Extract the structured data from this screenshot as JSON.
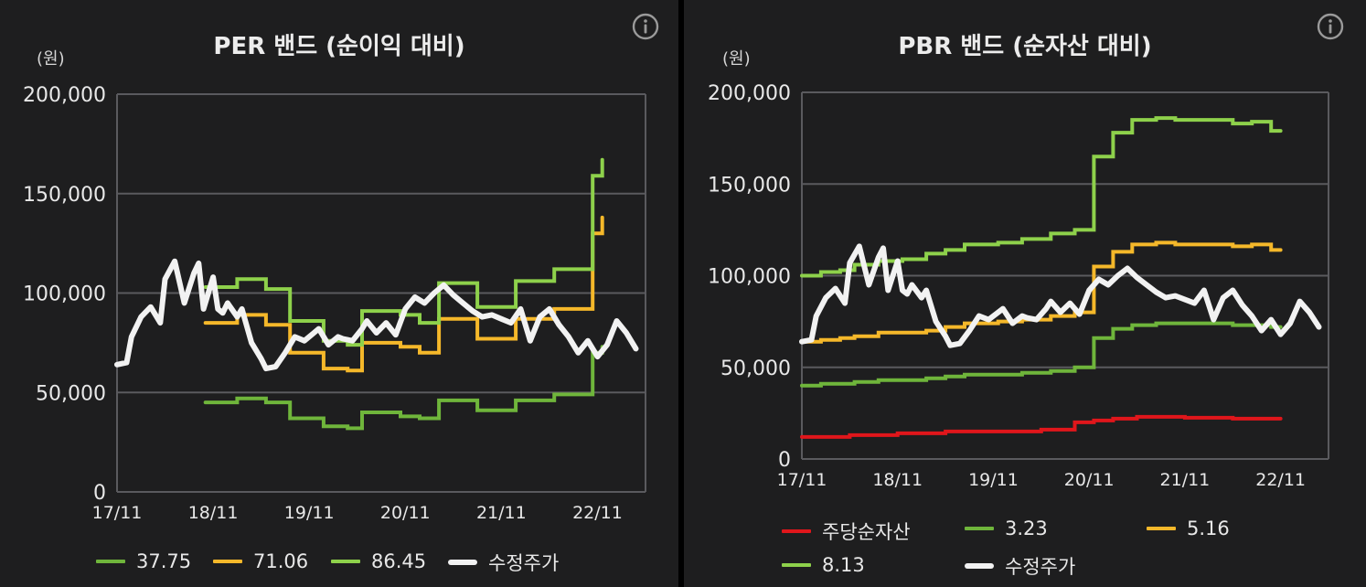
{
  "colors": {
    "background": "#1e1e1f",
    "grid": "#5a5a5e",
    "text": "#e8e8e8",
    "series_green_light": "#8ed14b",
    "series_green": "#6fb53b",
    "series_orange": "#f5b82a",
    "series_red": "#e0161b",
    "series_price": "#f2f2f2"
  },
  "icons": {
    "info": "info-circle-icon"
  },
  "chart_data": [
    {
      "type": "line",
      "title": "PER 밴드 (순이익 대비)",
      "unit": "(원)",
      "ylim": [
        0,
        200000
      ],
      "yticks": [
        "0",
        "50,000",
        "100,000",
        "150,000",
        "200,000"
      ],
      "yticks_values": [
        0,
        50000,
        100000,
        150000,
        200000
      ],
      "xlim": [
        0,
        5.5
      ],
      "xticks": [
        "17/11",
        "18/11",
        "19/11",
        "20/11",
        "21/11",
        "22/11"
      ],
      "xticks_values": [
        0,
        1,
        2,
        3,
        4,
        5
      ],
      "grid": true,
      "legend_position": "bottom",
      "series": [
        {
          "name": "37.75",
          "color": "#6fb53b",
          "style": "step",
          "width": 4,
          "x": [
            0.92,
            1.13,
            1.25,
            1.45,
            1.55,
            1.7,
            1.8,
            1.95,
            2.15,
            2.4,
            2.55,
            2.75,
            2.95,
            3.15,
            3.35,
            3.55,
            3.75,
            3.95,
            4.15,
            4.35,
            4.55,
            4.75,
            4.95,
            5.05
          ],
          "y": [
            45000,
            45000,
            47000,
            47000,
            45000,
            45000,
            37000,
            37000,
            33000,
            32000,
            40000,
            40000,
            38000,
            37000,
            46000,
            46000,
            41000,
            41000,
            46000,
            46000,
            49000,
            49000,
            70000,
            73000
          ]
        },
        {
          "name": "71.06",
          "color": "#f5b82a",
          "style": "step",
          "width": 4,
          "x": [
            0.92,
            1.13,
            1.25,
            1.45,
            1.55,
            1.7,
            1.8,
            1.95,
            2.15,
            2.4,
            2.55,
            2.75,
            2.95,
            3.15,
            3.35,
            3.55,
            3.75,
            3.95,
            4.15,
            4.35,
            4.55,
            4.75,
            4.95,
            5.05
          ],
          "y": [
            85000,
            85000,
            89000,
            89000,
            84000,
            84000,
            70000,
            70000,
            62000,
            61000,
            75000,
            75000,
            73000,
            70000,
            87000,
            87000,
            77000,
            77000,
            87000,
            87000,
            92000,
            92000,
            130000,
            138000
          ]
        },
        {
          "name": "86.45",
          "color": "#8ed14b",
          "style": "step",
          "width": 4,
          "x": [
            0.92,
            1.13,
            1.25,
            1.45,
            1.55,
            1.7,
            1.8,
            1.95,
            2.15,
            2.4,
            2.55,
            2.75,
            2.95,
            3.15,
            3.35,
            3.55,
            3.75,
            3.95,
            4.15,
            4.35,
            4.55,
            4.75,
            4.95,
            5.05
          ],
          "y": [
            103000,
            103000,
            107000,
            107000,
            102000,
            102000,
            86000,
            86000,
            76000,
            74000,
            91000,
            91000,
            89000,
            85000,
            105000,
            105000,
            93000,
            93000,
            106000,
            106000,
            112000,
            112000,
            159000,
            167000
          ]
        },
        {
          "name": "수정주가",
          "color": "#f2f2f2",
          "style": "line",
          "width": 6,
          "x": [
            0,
            0.1,
            0.15,
            0.25,
            0.35,
            0.45,
            0.5,
            0.6,
            0.7,
            0.8,
            0.85,
            0.9,
            1.0,
            1.05,
            1.1,
            1.15,
            1.25,
            1.3,
            1.4,
            1.5,
            1.55,
            1.65,
            1.75,
            1.85,
            1.95,
            2.05,
            2.1,
            2.2,
            2.3,
            2.35,
            2.45,
            2.55,
            2.6,
            2.7,
            2.8,
            2.9,
            3.0,
            3.1,
            3.2,
            3.3,
            3.4,
            3.5,
            3.6,
            3.7,
            3.8,
            3.9,
            4.0,
            4.1,
            4.2,
            4.3,
            4.4,
            4.5,
            4.6,
            4.7,
            4.8,
            4.9,
            5.0,
            5.1,
            5.2,
            5.3,
            5.4
          ],
          "y": [
            64000,
            65000,
            78000,
            88000,
            93000,
            85000,
            107000,
            116000,
            95000,
            110000,
            115000,
            92000,
            108000,
            92000,
            90000,
            95000,
            88000,
            92000,
            75000,
            67000,
            62000,
            63000,
            70000,
            78000,
            76000,
            80000,
            82000,
            74000,
            78000,
            77000,
            76000,
            82000,
            86000,
            80000,
            85000,
            79000,
            92000,
            98000,
            95000,
            100000,
            104000,
            99000,
            95000,
            91000,
            88000,
            89000,
            87000,
            85000,
            92000,
            76000,
            88000,
            92000,
            84000,
            78000,
            70000,
            76000,
            68000,
            74000,
            86000,
            80000,
            72000
          ]
        }
      ]
    },
    {
      "type": "line",
      "title": "PBR 밴드 (순자산 대비)",
      "unit": "(원)",
      "ylim": [
        0,
        200000
      ],
      "yticks": [
        "0",
        "50,000",
        "100,000",
        "150,000",
        "200,000"
      ],
      "yticks_values": [
        0,
        50000,
        100000,
        150000,
        200000
      ],
      "xlim": [
        0,
        5.5
      ],
      "xticks": [
        "17/11",
        "18/11",
        "19/11",
        "20/11",
        "21/11",
        "22/11"
      ],
      "xticks_values": [
        0,
        1,
        2,
        3,
        4,
        5
      ],
      "grid": true,
      "legend_position": "bottom",
      "series": [
        {
          "name": "주당순자산",
          "color": "#e0161b",
          "style": "step",
          "width": 4,
          "x": [
            0,
            0.5,
            1.0,
            1.5,
            2.0,
            2.5,
            2.85,
            3.05,
            3.25,
            3.5,
            4.0,
            4.5,
            5.0
          ],
          "y": [
            12000,
            13000,
            14000,
            15000,
            15000,
            16000,
            20000,
            21000,
            22000,
            23000,
            22500,
            22000,
            22000
          ]
        },
        {
          "name": "3.23",
          "color": "#6fb53b",
          "style": "step",
          "width": 4,
          "x": [
            0,
            0.2,
            0.4,
            0.55,
            0.8,
            1.05,
            1.3,
            1.5,
            1.7,
            2.05,
            2.3,
            2.6,
            2.85,
            3.05,
            3.25,
            3.45,
            3.7,
            3.9,
            4.2,
            4.5,
            4.7,
            4.9,
            5.0
          ],
          "y": [
            40000,
            41000,
            41000,
            42000,
            43000,
            43000,
            44000,
            45000,
            46000,
            46000,
            47000,
            48000,
            50000,
            66000,
            71000,
            73000,
            74000,
            74000,
            74000,
            73000,
            73000,
            72000,
            72000
          ]
        },
        {
          "name": "5.16",
          "color": "#f5b82a",
          "style": "step",
          "width": 4,
          "x": [
            0,
            0.2,
            0.4,
            0.55,
            0.8,
            1.05,
            1.3,
            1.5,
            1.7,
            2.05,
            2.3,
            2.6,
            2.85,
            3.05,
            3.25,
            3.45,
            3.7,
            3.9,
            4.2,
            4.5,
            4.7,
            4.9,
            5.0
          ],
          "y": [
            64000,
            65000,
            66000,
            67000,
            69000,
            69000,
            70000,
            72000,
            74000,
            75000,
            76000,
            78000,
            80000,
            105000,
            113000,
            117000,
            118000,
            117000,
            117000,
            116000,
            117000,
            114000,
            114000
          ]
        },
        {
          "name": "8.13",
          "color": "#8ed14b",
          "style": "step",
          "width": 4,
          "x": [
            0,
            0.2,
            0.4,
            0.55,
            0.8,
            1.05,
            1.3,
            1.5,
            1.7,
            2.05,
            2.3,
            2.6,
            2.85,
            3.05,
            3.25,
            3.45,
            3.7,
            3.9,
            4.2,
            4.5,
            4.7,
            4.9,
            5.0
          ],
          "y": [
            100000,
            102000,
            103000,
            106000,
            108000,
            109000,
            112000,
            114000,
            117000,
            118000,
            120000,
            123000,
            125000,
            165000,
            178000,
            185000,
            186000,
            185000,
            185000,
            183000,
            184000,
            179000,
            179000
          ]
        },
        {
          "name": "수정주가",
          "color": "#f2f2f2",
          "style": "line",
          "width": 6,
          "x": [
            0,
            0.1,
            0.15,
            0.25,
            0.35,
            0.45,
            0.5,
            0.6,
            0.7,
            0.8,
            0.85,
            0.9,
            1.0,
            1.05,
            1.1,
            1.15,
            1.25,
            1.3,
            1.4,
            1.5,
            1.55,
            1.65,
            1.75,
            1.85,
            1.95,
            2.05,
            2.1,
            2.2,
            2.3,
            2.35,
            2.45,
            2.55,
            2.6,
            2.7,
            2.8,
            2.9,
            3.0,
            3.1,
            3.2,
            3.3,
            3.4,
            3.5,
            3.6,
            3.7,
            3.8,
            3.9,
            4.0,
            4.1,
            4.2,
            4.3,
            4.4,
            4.5,
            4.6,
            4.7,
            4.8,
            4.9,
            5.0,
            5.1,
            5.2,
            5.3,
            5.4
          ],
          "y": [
            64000,
            65000,
            78000,
            88000,
            93000,
            85000,
            107000,
            116000,
            95000,
            110000,
            115000,
            92000,
            108000,
            92000,
            90000,
            95000,
            88000,
            92000,
            75000,
            67000,
            62000,
            63000,
            70000,
            78000,
            76000,
            80000,
            82000,
            74000,
            78000,
            77000,
            76000,
            82000,
            86000,
            80000,
            85000,
            79000,
            92000,
            98000,
            95000,
            100000,
            104000,
            99000,
            95000,
            91000,
            88000,
            89000,
            87000,
            85000,
            92000,
            76000,
            88000,
            92000,
            84000,
            78000,
            70000,
            76000,
            68000,
            74000,
            86000,
            80000,
            72000
          ]
        }
      ]
    }
  ]
}
